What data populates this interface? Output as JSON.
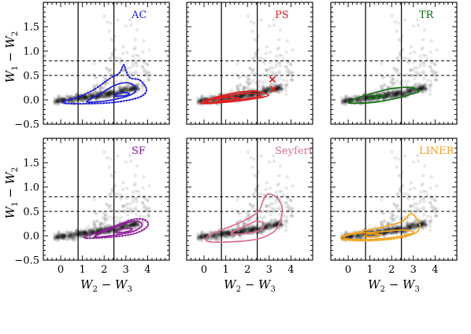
{
  "chart_data": {
    "type": "scatter",
    "layout": "2x3 grid",
    "shared_axes": true,
    "xlabel": "W2 − W3",
    "ylabel": "W1 − W2",
    "xlabel_parts": {
      "a": "W",
      "a_sub": "2",
      "op": " − ",
      "b": "W",
      "b_sub": "3"
    },
    "ylabel_parts": {
      "a": "W",
      "a_sub": "1",
      "op": " − ",
      "b": "W",
      "b_sub": "2"
    },
    "xlim": [
      -0.8,
      5.0
    ],
    "ylim": [
      -0.5,
      2.0
    ],
    "xticks": [
      0,
      1,
      2,
      3,
      4
    ],
    "yticks": [
      -0.5,
      0.0,
      0.5,
      1.0,
      1.5
    ],
    "xtick_labels": [
      "0",
      "1",
      "2",
      "3",
      "4"
    ],
    "ytick_labels": [
      "−0.5",
      "0.0",
      "0.5",
      "1.0",
      "1.5"
    ],
    "vertical_lines": [
      0.8,
      2.45
    ],
    "horizontal_dashed_lines": [
      0.5,
      0.8
    ],
    "panels": [
      {
        "name": "AC",
        "color": "#1f1fd6",
        "contours": [
          {
            "style": "solid",
            "points": [
              [
                1.3,
                -0.05
              ],
              [
                2.4,
                0.0
              ],
              [
                3.3,
                0.12
              ],
              [
                3.45,
                0.25
              ],
              [
                3.1,
                0.35
              ],
              [
                2.5,
                0.3
              ],
              [
                1.8,
                0.12
              ],
              [
                1.3,
                0.0
              ]
            ]
          },
          {
            "style": "solid",
            "points": [
              [
                2.5,
                0.07
              ],
              [
                3.0,
                0.09
              ],
              [
                3.15,
                0.13
              ],
              [
                2.8,
                0.15
              ],
              [
                2.5,
                0.1
              ]
            ]
          },
          {
            "style": "dotted",
            "points": [
              [
                0.2,
                -0.07
              ],
              [
                1.2,
                -0.08
              ],
              [
                2.5,
                -0.05
              ],
              [
                3.6,
                0.05
              ],
              [
                3.95,
                0.2
              ],
              [
                3.65,
                0.4
              ],
              [
                3.2,
                0.45
              ],
              [
                3.0,
                0.6
              ],
              [
                2.9,
                0.72
              ],
              [
                2.7,
                0.55
              ],
              [
                2.3,
                0.45
              ],
              [
                1.5,
                0.2
              ],
              [
                0.7,
                0.04
              ],
              [
                0.2,
                -0.02
              ]
            ]
          }
        ]
      },
      {
        "name": "PS",
        "color": "#e02020",
        "contours": [
          {
            "style": "solid",
            "points": [
              [
                -0.05,
                -0.08
              ],
              [
                1.0,
                -0.05
              ],
              [
                2.0,
                0.0
              ],
              [
                2.85,
                0.07
              ],
              [
                2.9,
                0.12
              ],
              [
                2.3,
                0.18
              ],
              [
                1.4,
                0.14
              ],
              [
                0.5,
                0.05
              ],
              [
                -0.05,
                -0.03
              ]
            ]
          },
          {
            "style": "solid",
            "points": [
              [
                0.1,
                -0.06
              ],
              [
                1.0,
                -0.03
              ],
              [
                1.9,
                0.02
              ],
              [
                2.6,
                0.08
              ],
              [
                2.2,
                0.13
              ],
              [
                1.3,
                0.1
              ],
              [
                0.5,
                0.02
              ],
              [
                0.1,
                -0.03
              ]
            ]
          },
          {
            "style": "solid",
            "points": [
              [
                0.7,
                -0.02
              ],
              [
                1.3,
                0.0
              ],
              [
                1.6,
                0.04
              ],
              [
                1.1,
                0.05
              ],
              [
                0.7,
                0.02
              ]
            ]
          }
        ],
        "markers": [
          {
            "x": 3.15,
            "y": 0.42
          },
          {
            "x": 3.2,
            "y": 0.22
          }
        ]
      },
      {
        "name": "TR",
        "color": "#117011",
        "contours": [
          {
            "style": "solid",
            "points": [
              [
                0.1,
                -0.07
              ],
              [
                1.2,
                -0.05
              ],
              [
                2.4,
                0.05
              ],
              [
                3.0,
                0.13
              ],
              [
                3.25,
                0.17
              ],
              [
                2.9,
                0.25
              ],
              [
                2.0,
                0.23
              ],
              [
                1.0,
                0.12
              ],
              [
                0.3,
                0.02
              ],
              [
                0.1,
                -0.03
              ]
            ]
          },
          {
            "style": "solid",
            "points": [
              [
                1.0,
                0.03
              ],
              [
                1.5,
                0.05
              ],
              [
                1.7,
                0.08
              ],
              [
                1.3,
                0.09
              ],
              [
                1.0,
                0.06
              ]
            ]
          }
        ]
      },
      {
        "name": "SF",
        "color": "#8f1a9a",
        "contours": [
          {
            "style": "solid",
            "points": [
              [
                1.6,
                -0.03
              ],
              [
                2.6,
                0.02
              ],
              [
                3.4,
                0.1
              ],
              [
                3.75,
                0.22
              ],
              [
                3.5,
                0.3
              ],
              [
                3.0,
                0.26
              ],
              [
                2.3,
                0.14
              ],
              [
                1.7,
                0.02
              ]
            ]
          },
          {
            "style": "solid",
            "points": [
              [
                2.6,
                0.06
              ],
              [
                3.1,
                0.09
              ],
              [
                3.3,
                0.14
              ],
              [
                2.9,
                0.15
              ],
              [
                2.6,
                0.1
              ]
            ]
          },
          {
            "style": "dotted",
            "points": [
              [
                1.2,
                -0.05
              ],
              [
                2.5,
                -0.02
              ],
              [
                3.5,
                0.06
              ],
              [
                4.0,
                0.2
              ],
              [
                3.9,
                0.32
              ],
              [
                3.4,
                0.34
              ],
              [
                2.6,
                0.22
              ],
              [
                1.8,
                0.08
              ],
              [
                1.2,
                0.0
              ]
            ]
          }
        ]
      },
      {
        "name": "Seyfert",
        "color": "#d9708f",
        "contours": [
          {
            "style": "solid",
            "points": [
              [
                0.2,
                -0.12
              ],
              [
                1.5,
                -0.12
              ],
              [
                2.6,
                -0.05
              ],
              [
                3.35,
                0.15
              ],
              [
                3.6,
                0.55
              ],
              [
                3.3,
                0.8
              ],
              [
                2.9,
                0.85
              ],
              [
                2.7,
                0.7
              ],
              [
                2.5,
                0.5
              ],
              [
                1.8,
                0.3
              ],
              [
                0.8,
                0.12
              ],
              [
                0.2,
                0.0
              ]
            ]
          },
          {
            "style": "solid",
            "points": [
              [
                1.3,
                0.03
              ],
              [
                2.0,
                0.05
              ],
              [
                2.6,
                0.12
              ],
              [
                2.75,
                0.25
              ],
              [
                2.4,
                0.3
              ],
              [
                2.0,
                0.22
              ],
              [
                1.5,
                0.12
              ],
              [
                1.3,
                0.07
              ]
            ]
          }
        ]
      },
      {
        "name": "LINER",
        "color": "#f5a21a",
        "contours": [
          {
            "style": "solid",
            "points": [
              [
                -0.1,
                -0.06
              ],
              [
                0.8,
                -0.08
              ],
              [
                1.8,
                -0.05
              ],
              [
                2.7,
                0.02
              ],
              [
                3.0,
                0.08
              ],
              [
                2.5,
                0.12
              ],
              [
                1.5,
                0.08
              ],
              [
                0.5,
                0.05
              ],
              [
                -0.1,
                0.0
              ]
            ]
          },
          {
            "style": "solid",
            "points": [
              [
                0.8,
                -0.02
              ],
              [
                1.3,
                -0.02
              ],
              [
                1.5,
                0.02
              ],
              [
                1.1,
                0.04
              ],
              [
                0.8,
                0.02
              ]
            ]
          },
          {
            "style": "dotted",
            "points": [
              [
                -0.2,
                -0.08
              ],
              [
                1.0,
                -0.1
              ],
              [
                2.3,
                -0.05
              ],
              [
                3.1,
                0.06
              ],
              [
                3.3,
                0.22
              ],
              [
                3.1,
                0.38
              ],
              [
                2.85,
                0.45
              ],
              [
                2.5,
                0.3
              ],
              [
                1.8,
                0.2
              ],
              [
                0.7,
                0.1
              ],
              [
                -0.2,
                0.0
              ]
            ]
          }
        ]
      }
    ]
  }
}
